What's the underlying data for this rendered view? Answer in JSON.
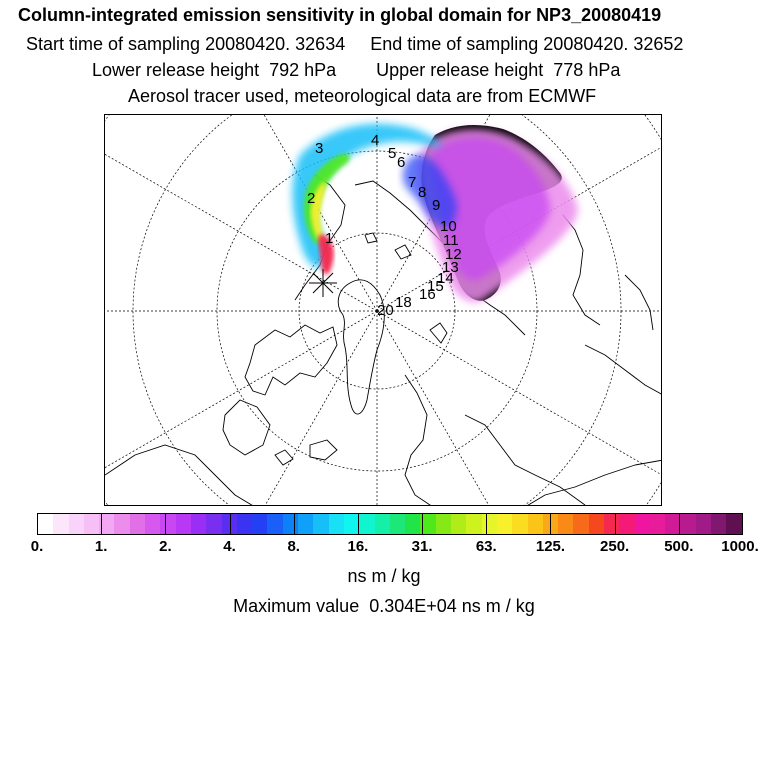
{
  "header": {
    "title": "Column-integrated emission sensitivity in global domain for NP3_20080419",
    "sampling_line": "Start time of sampling 20080420. 32634     End time of sampling 20080420. 32652",
    "release_line": "Lower release height  792 hPa        Upper release height  778 hPa",
    "source_line": "Aerosol tracer used, meteorological data are from ECMWF"
  },
  "map": {
    "projection": "north-polar-stereographic",
    "trajectory_markers": [
      "1",
      "2",
      "3",
      "4",
      "5",
      "6",
      "7",
      "8",
      "9",
      "10",
      "11",
      "12",
      "13",
      "14",
      "15",
      "16",
      "18",
      "20"
    ],
    "release_marker_icon": "asterisk-icon"
  },
  "colorbar": {
    "colors": [
      "#ffffff",
      "#fce6fc",
      "#f9d3f9",
      "#f6bff6",
      "#f2a8f2",
      "#ec8cec",
      "#e16fe6",
      "#d658ee",
      "#c847f2",
      "#b838f5",
      "#9a2ef5",
      "#7a2ef0",
      "#5a2ef0",
      "#3a33f2",
      "#2440f5",
      "#1a60f8",
      "#0b82f8",
      "#0fa0fa",
      "#16bff8",
      "#1ae0f5",
      "#0ff5f0",
      "#10f5d0",
      "#15f0a8",
      "#1be878",
      "#20e548",
      "#4fe81a",
      "#86e815",
      "#b0ec18",
      "#cdf21e",
      "#e6f52a",
      "#f8f02a",
      "#fadc20",
      "#fac418",
      "#f8a915",
      "#f88a15",
      "#f76a1a",
      "#f5481e",
      "#f52850",
      "#f51a78",
      "#f015a0",
      "#e81b9a",
      "#d01a98",
      "#b81a90",
      "#a01a88",
      "#801870",
      "#601050"
    ],
    "tick_labels": [
      "0.",
      "1.",
      "2.",
      "4.",
      "8.",
      "16.",
      "31.",
      "63.",
      "125.",
      "250.",
      "500.",
      "1000."
    ],
    "units": "ns m / kg",
    "max_value_text": "Maximum value  0.304E+04 ns m / kg"
  }
}
